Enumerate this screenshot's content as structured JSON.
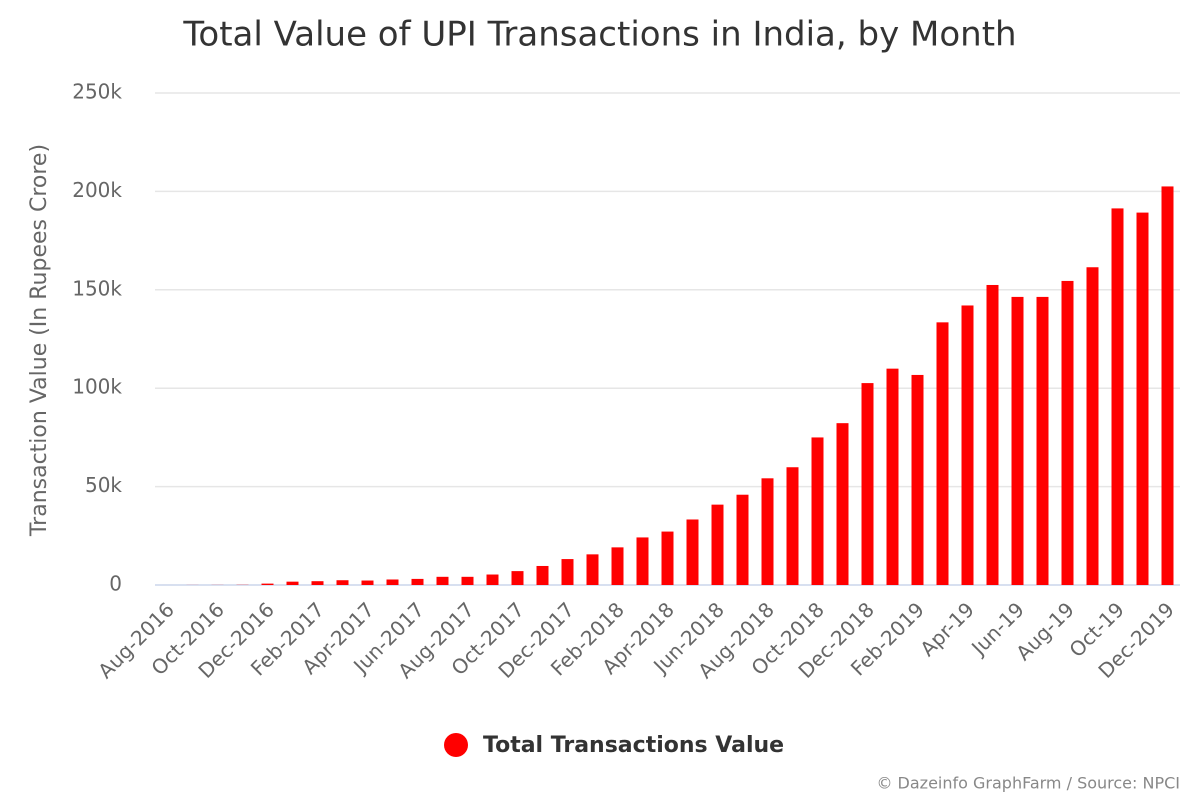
{
  "chart_data": {
    "type": "bar",
    "title": "Total Value of UPI Transactions in India, by Month",
    "y_label": "Transaction Value (In Rupees Crore)",
    "credit": "© Dazeinfo GraphFarm / Source: NPCI",
    "categories": [
      "Aug-2016",
      null,
      "Oct-2016",
      null,
      "Dec-2016",
      null,
      "Feb-2017",
      null,
      "Apr-2017",
      null,
      "Jun-2017",
      null,
      "Aug-2017",
      null,
      "Oct-2017",
      null,
      "Dec-2017",
      null,
      "Feb-2018",
      null,
      "Apr-2018",
      null,
      "Jun-2018",
      null,
      "Aug-2018",
      null,
      "Oct-2018",
      null,
      "Dec-2018",
      null,
      "Feb-2019",
      null,
      "Apr-19",
      null,
      "Jun-19",
      null,
      "Aug-19",
      null,
      "Oct-19",
      null,
      "Dec-2019"
    ],
    "series": [
      {
        "name": "Total Transactions Value",
        "color": "#ff0000",
        "values": [
          3,
          33,
          49,
          90,
          707,
          1696,
          1937,
          2425,
          2271,
          2797,
          3098,
          4158,
          4156,
          5325,
          7058,
          9669,
          13174,
          15571,
          19126,
          24172,
          27149,
          33289,
          40834,
          45875,
          54212,
          59835,
          74978,
          82232,
          102594,
          109932,
          106737,
          133461,
          142035,
          152449,
          146387,
          146386,
          154506,
          161456,
          191359,
          189229,
          202521
        ]
      }
    ],
    "ylim": [
      0,
      250000
    ],
    "yticks": [
      0,
      {
        "value": 50000,
        "label": "50k"
      },
      {
        "value": 100000,
        "label": "100k"
      },
      {
        "value": 150000,
        "label": "150k"
      },
      {
        "value": 200000,
        "label": "200k"
      },
      {
        "value": 250000,
        "label": "250k"
      }
    ],
    "grid": true
  }
}
